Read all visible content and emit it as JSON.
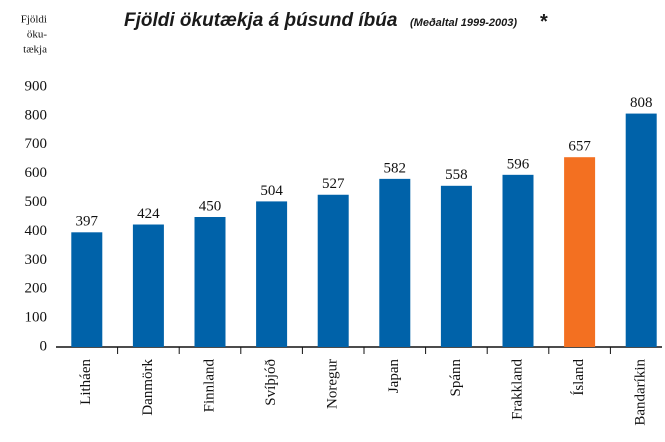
{
  "chart_data": {
    "type": "bar",
    "title": "Fjöldi ökutækja á þúsund íbúa",
    "subtitle": "(Meðaltal 1999-2003)",
    "annotation": "*",
    "ylabel": [
      "Fjöldi",
      "öku-",
      "tækja"
    ],
    "categories": [
      "Litháen",
      "Danmörk",
      "Finnland",
      "Svíþjóð",
      "Noregur",
      "Japan",
      "Spánn",
      "Frakkland",
      "Ísland",
      "Bandaríkin"
    ],
    "values": [
      397,
      424,
      450,
      504,
      527,
      582,
      558,
      596,
      657,
      808
    ],
    "colors": [
      "#0062a9",
      "#0062a9",
      "#0062a9",
      "#0062a9",
      "#0062a9",
      "#0062a9",
      "#0062a9",
      "#0062a9",
      "#f37021",
      "#0062a9"
    ],
    "ylim": [
      0,
      900
    ],
    "yticks": [
      0,
      100,
      200,
      300,
      400,
      500,
      600,
      700,
      800,
      900
    ],
    "grid": false
  }
}
